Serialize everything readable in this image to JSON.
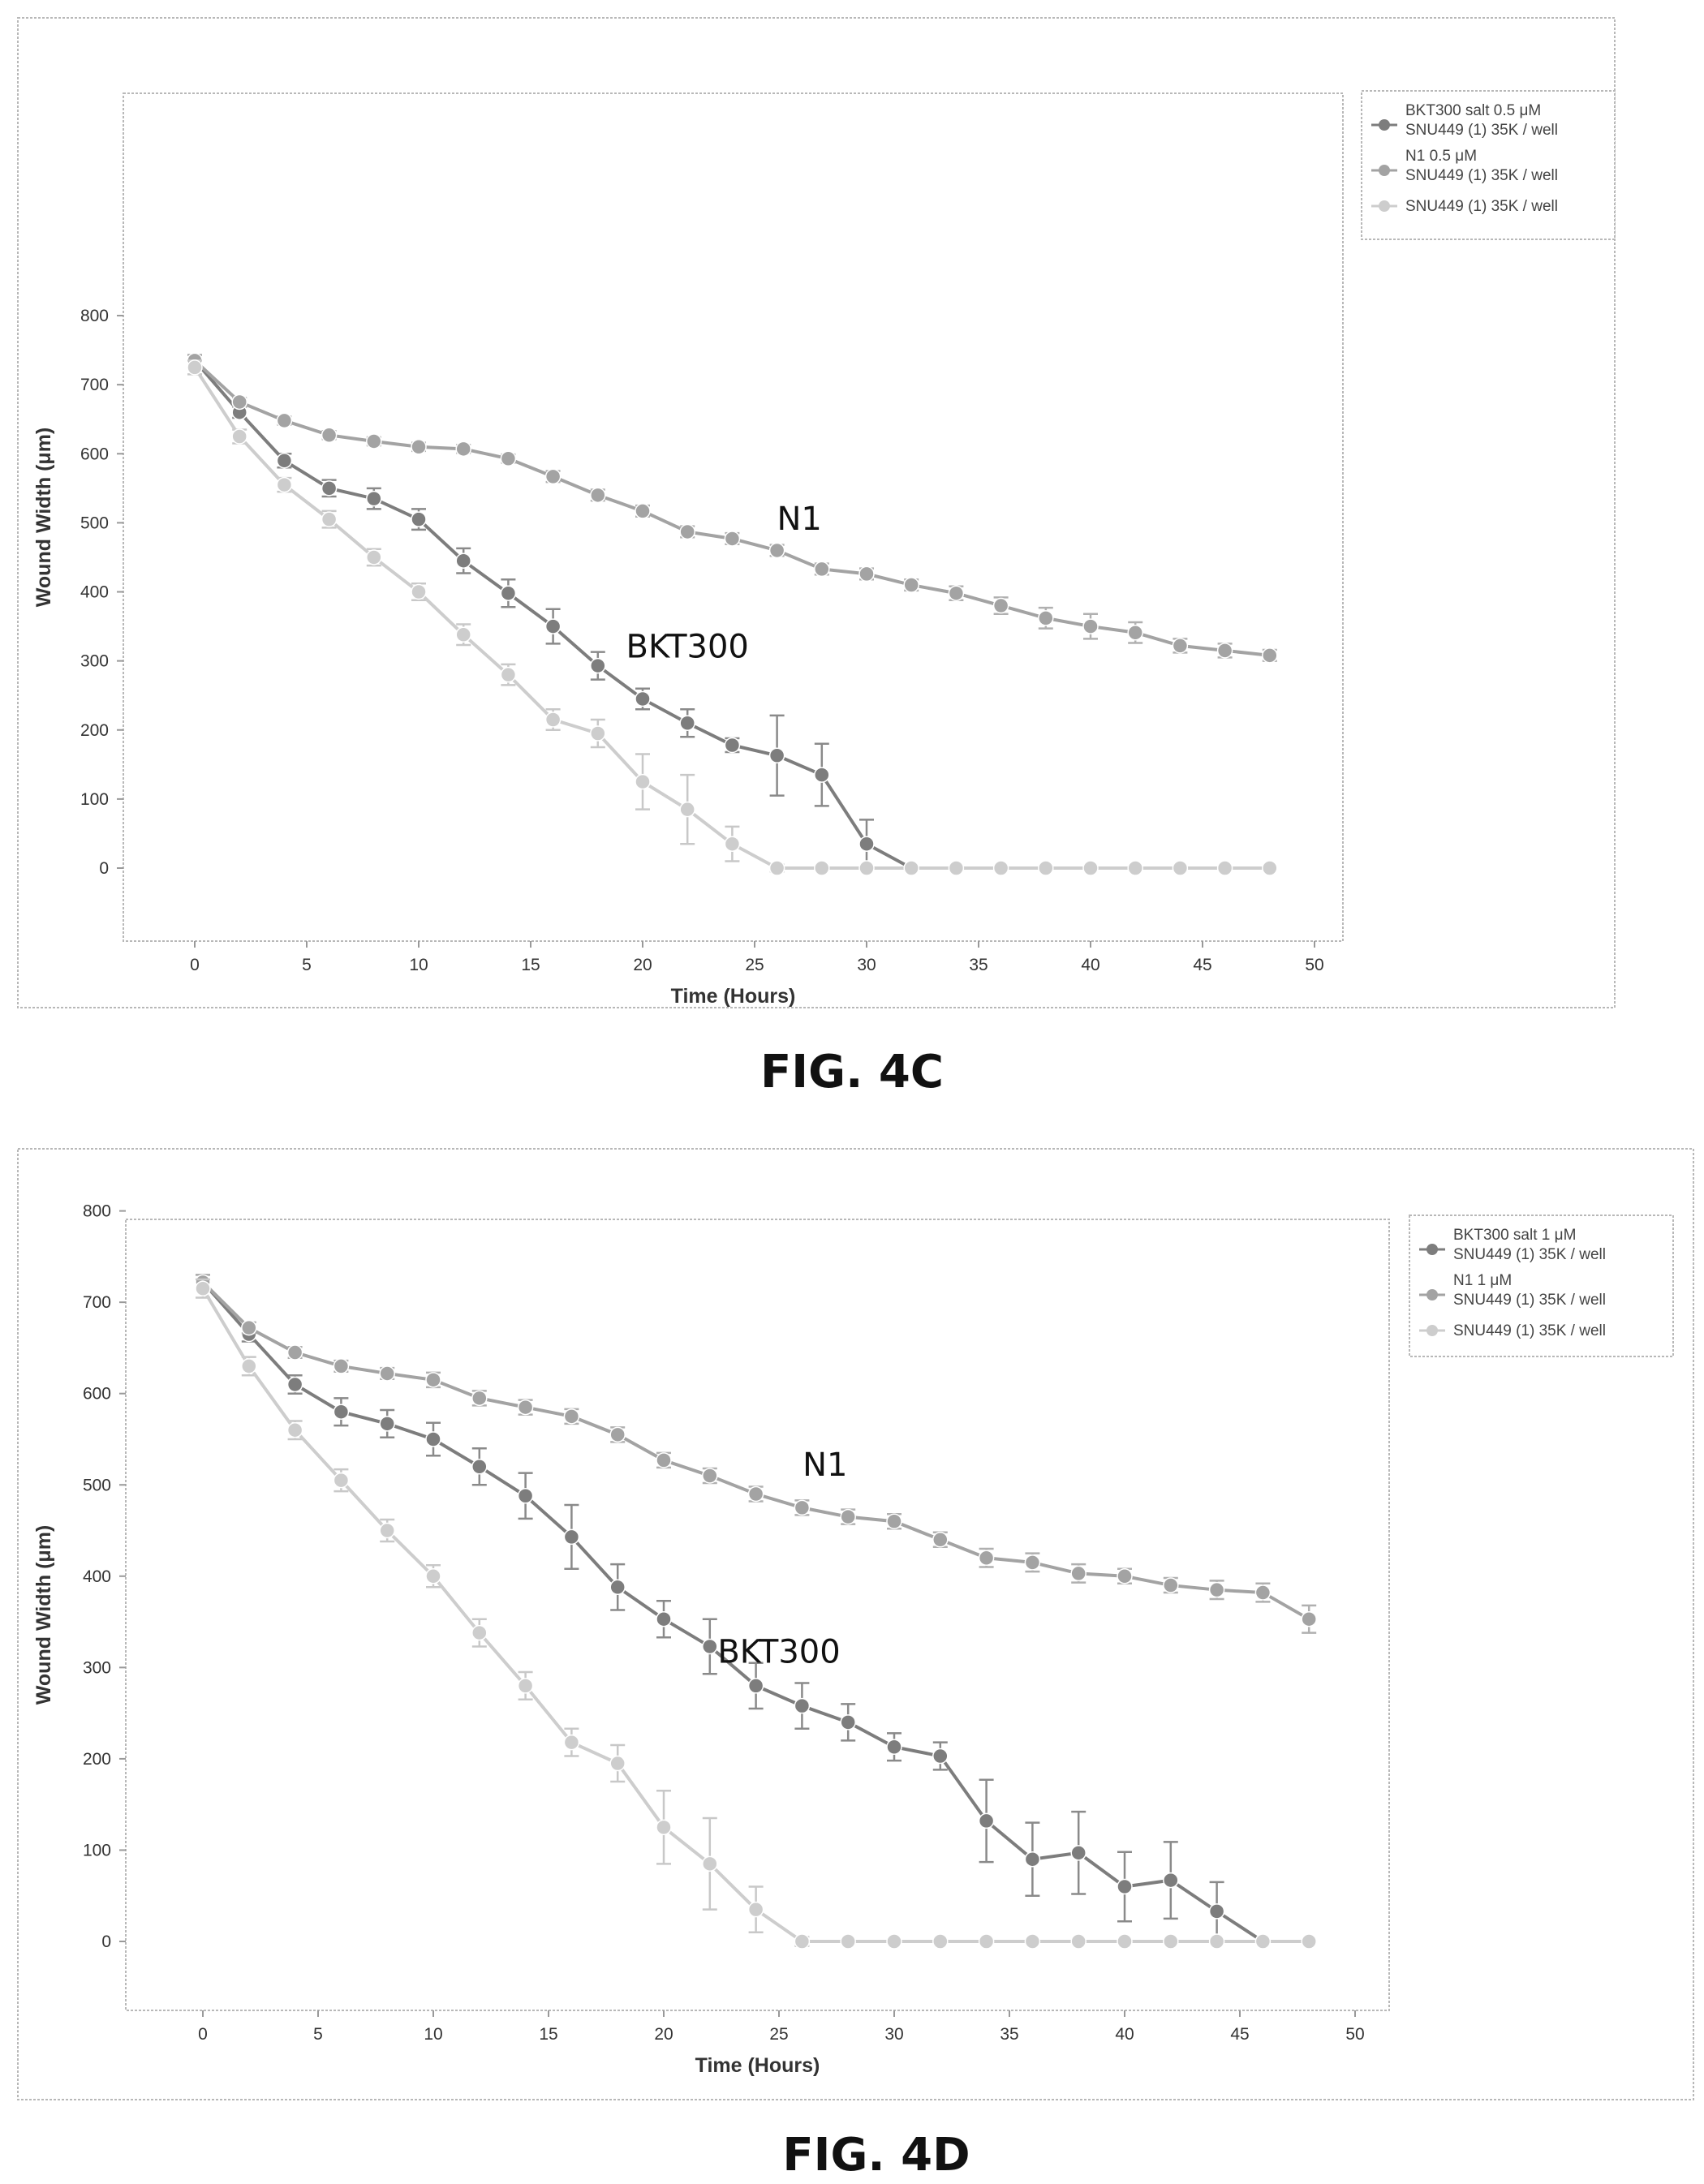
{
  "figures": [
    {
      "label": "FIG. 4C"
    },
    {
      "label": "FIG. 4D"
    }
  ],
  "colors": {
    "bkt300": "#7d7d7d",
    "n1": "#a3a3a3",
    "control": "#cdcdcd",
    "errorbar_bkt300": "#8a8a8a",
    "errorbar_n1": "#b0b0b0",
    "errorbar_control": "#c8c8c8",
    "frame": "#b8b8b8"
  },
  "chart_data": [
    {
      "type": "line",
      "title": "",
      "xlabel": "Time (Hours)",
      "ylabel": "Wound Width (μm)",
      "xlim": [
        -5,
        51
      ],
      "ylim": [
        -80,
        830
      ],
      "xticks": [
        0,
        5,
        10,
        15,
        20,
        25,
        30,
        35,
        40,
        45,
        50
      ],
      "yticks": [
        0,
        100,
        200,
        300,
        400,
        500,
        600,
        700,
        800
      ],
      "grid": false,
      "legend_position": "right",
      "annotations": [
        {
          "text": "N1",
          "x": 27,
          "y": 490
        },
        {
          "text": "BKT300",
          "x": 22,
          "y": 305
        }
      ],
      "series": [
        {
          "name_line1": "BKT300 salt 0.5 μM",
          "name_line2": "SNU449 (1) 35K / well",
          "color_key": "bkt300",
          "x": [
            0,
            2,
            4,
            6,
            8,
            10,
            12,
            14,
            16,
            18,
            20,
            22,
            24,
            26,
            28,
            30,
            32,
            34,
            36,
            38,
            40,
            42,
            44,
            46,
            48
          ],
          "y": [
            735,
            660,
            590,
            550,
            535,
            505,
            445,
            398,
            350,
            293,
            245,
            210,
            178,
            163,
            135,
            35,
            0,
            0,
            0,
            0,
            0,
            0,
            0,
            0,
            0
          ],
          "err": [
            8,
            8,
            10,
            12,
            15,
            15,
            18,
            20,
            25,
            20,
            15,
            20,
            10,
            58,
            45,
            35,
            0,
            0,
            0,
            0,
            0,
            0,
            0,
            0,
            0
          ]
        },
        {
          "name_line1": "N1 0.5 μM",
          "name_line2": "SNU449 (1) 35K / well",
          "color_key": "n1",
          "x": [
            0,
            2,
            4,
            6,
            8,
            10,
            12,
            14,
            16,
            18,
            20,
            22,
            24,
            26,
            28,
            30,
            32,
            34,
            36,
            38,
            40,
            42,
            44,
            46,
            48
          ],
          "y": [
            735,
            675,
            648,
            627,
            618,
            610,
            607,
            593,
            567,
            540,
            517,
            487,
            477,
            460,
            433,
            426,
            410,
            398,
            380,
            362,
            350,
            341,
            322,
            315,
            308
          ],
          "err": [
            8,
            6,
            6,
            6,
            6,
            6,
            6,
            6,
            8,
            8,
            8,
            8,
            8,
            8,
            8,
            8,
            8,
            10,
            12,
            15,
            18,
            15,
            10,
            10,
            8
          ]
        },
        {
          "name_line1": "SNU449 (1) 35K / well",
          "name_line2": "",
          "color_key": "control",
          "x": [
            0,
            2,
            4,
            6,
            8,
            10,
            12,
            14,
            16,
            18,
            20,
            22,
            24,
            26,
            28,
            30,
            32,
            34,
            36,
            38,
            40,
            42,
            44,
            46,
            48
          ],
          "y": [
            725,
            625,
            555,
            505,
            450,
            400,
            338,
            280,
            215,
            195,
            125,
            85,
            35,
            0,
            0,
            0,
            0,
            0,
            0,
            0,
            0,
            0,
            0,
            0,
            0
          ],
          "err": [
            10,
            10,
            10,
            12,
            12,
            12,
            15,
            15,
            15,
            20,
            40,
            50,
            25,
            5,
            0,
            0,
            0,
            0,
            0,
            0,
            0,
            0,
            0,
            0,
            0
          ]
        }
      ]
    },
    {
      "type": "line",
      "title": "",
      "xlabel": "Time (Hours)",
      "ylabel": "Wound Width (μm)",
      "xlim": [
        -5,
        51
      ],
      "ylim": [
        -80,
        810
      ],
      "xticks": [
        0,
        5,
        10,
        15,
        20,
        25,
        30,
        35,
        40,
        45,
        50
      ],
      "yticks": [
        0,
        100,
        200,
        300,
        400,
        500,
        600,
        700,
        800
      ],
      "grid": false,
      "legend_position": "right",
      "annotations": [
        {
          "text": "N1",
          "x": 27,
          "y": 510
        },
        {
          "text": "BKT300",
          "x": 25,
          "y": 305
        }
      ],
      "series": [
        {
          "name_line1": "BKT300 salt 1 μM",
          "name_line2": "SNU449 (1) 35K / well",
          "color_key": "bkt300",
          "x": [
            0,
            2,
            4,
            6,
            8,
            10,
            12,
            14,
            16,
            18,
            20,
            22,
            24,
            26,
            28,
            30,
            32,
            34,
            36,
            38,
            40,
            42,
            44,
            46,
            48
          ],
          "y": [
            722,
            665,
            610,
            580,
            567,
            550,
            520,
            488,
            443,
            388,
            353,
            323,
            280,
            258,
            240,
            213,
            203,
            132,
            90,
            97,
            60,
            67,
            33,
            0,
            0
          ],
          "err": [
            8,
            8,
            10,
            15,
            15,
            18,
            20,
            25,
            35,
            25,
            20,
            30,
            25,
            25,
            20,
            15,
            15,
            45,
            40,
            45,
            38,
            42,
            32,
            0,
            0
          ]
        },
        {
          "name_line1": "N1 1 μM",
          "name_line2": "SNU449 (1) 35K / well",
          "color_key": "n1",
          "x": [
            0,
            2,
            4,
            6,
            8,
            10,
            12,
            14,
            16,
            18,
            20,
            22,
            24,
            26,
            28,
            30,
            32,
            34,
            36,
            38,
            40,
            42,
            44,
            46,
            48
          ],
          "y": [
            722,
            672,
            645,
            630,
            622,
            615,
            595,
            585,
            575,
            555,
            527,
            510,
            490,
            475,
            465,
            460,
            440,
            420,
            415,
            403,
            400,
            390,
            385,
            382,
            353
          ],
          "err": [
            8,
            6,
            6,
            6,
            6,
            8,
            8,
            8,
            8,
            8,
            8,
            8,
            8,
            8,
            8,
            8,
            8,
            10,
            10,
            10,
            8,
            8,
            10,
            10,
            15
          ]
        },
        {
          "name_line1": "SNU449 (1) 35K / well",
          "name_line2": "",
          "color_key": "control",
          "x": [
            0,
            2,
            4,
            6,
            8,
            10,
            12,
            14,
            16,
            18,
            20,
            22,
            24,
            26,
            28,
            30,
            32,
            34,
            36,
            38,
            40,
            42,
            44,
            46,
            48
          ],
          "y": [
            715,
            630,
            560,
            505,
            450,
            400,
            338,
            280,
            218,
            195,
            125,
            85,
            35,
            0,
            0,
            0,
            0,
            0,
            0,
            0,
            0,
            0,
            0,
            0,
            0
          ],
          "err": [
            10,
            10,
            10,
            12,
            12,
            12,
            15,
            15,
            15,
            20,
            40,
            50,
            25,
            5,
            0,
            0,
            0,
            0,
            0,
            0,
            0,
            0,
            0,
            0,
            0
          ]
        }
      ]
    }
  ]
}
